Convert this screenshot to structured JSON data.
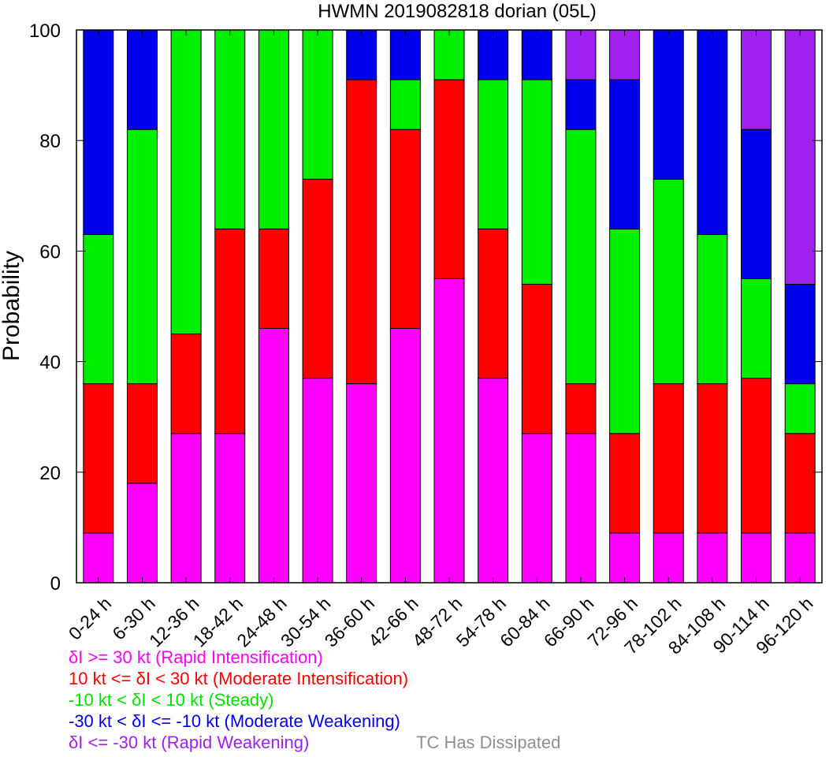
{
  "chart_data": {
    "type": "bar",
    "stacked": true,
    "title": "HWMN 2019082818 dorian (05L)",
    "ylabel": "Probability",
    "ylim": [
      0,
      100
    ],
    "yticks": [
      0,
      20,
      40,
      60,
      80,
      100
    ],
    "categories": [
      "0-24 h",
      "6-30 h",
      "12-36 h",
      "18-42 h",
      "24-48 h",
      "30-54 h",
      "36-60 h",
      "42-66 h",
      "48-72 h",
      "54-78 h",
      "60-84 h",
      "66-90 h",
      "72-96 h",
      "78-102 h",
      "84-108 h",
      "90-114 h",
      "96-120 h"
    ],
    "series": [
      {
        "name": "δI >= 30 kt (Rapid Intensification)",
        "color": "#ff00ff",
        "values": [
          9,
          18,
          27,
          27,
          46,
          37,
          36,
          46,
          55,
          37,
          27,
          27,
          9,
          9,
          9,
          9,
          9
        ]
      },
      {
        "name": "10 kt <= δI < 30 kt (Moderate Intensification)",
        "color": "#ff0000",
        "values": [
          27,
          18,
          18,
          37,
          18,
          36,
          55,
          36,
          36,
          27,
          27,
          9,
          18,
          27,
          27,
          28,
          18
        ]
      },
      {
        "name": "-10 kt < δI < 10 kt (Steady)",
        "color": "#00ee00",
        "values": [
          27,
          46,
          55,
          36,
          36,
          27,
          0,
          9,
          9,
          27,
          37,
          46,
          37,
          37,
          27,
          18,
          9
        ]
      },
      {
        "name": "-30 kt < δI <= -10 kt (Moderate Weakening)",
        "color": "#0000ee",
        "values": [
          37,
          18,
          0,
          0,
          0,
          0,
          9,
          9,
          0,
          9,
          9,
          9,
          27,
          27,
          37,
          27,
          18
        ]
      },
      {
        "name": "δI <= -30 kt (Rapid Weakening)",
        "color": "#a020f0",
        "values": [
          0,
          0,
          0,
          0,
          0,
          0,
          0,
          0,
          0,
          0,
          0,
          9,
          9,
          0,
          0,
          18,
          46
        ]
      }
    ],
    "extra_legend": {
      "label": "TC Has Dissipated",
      "color": "#909090"
    },
    "grid": false
  }
}
